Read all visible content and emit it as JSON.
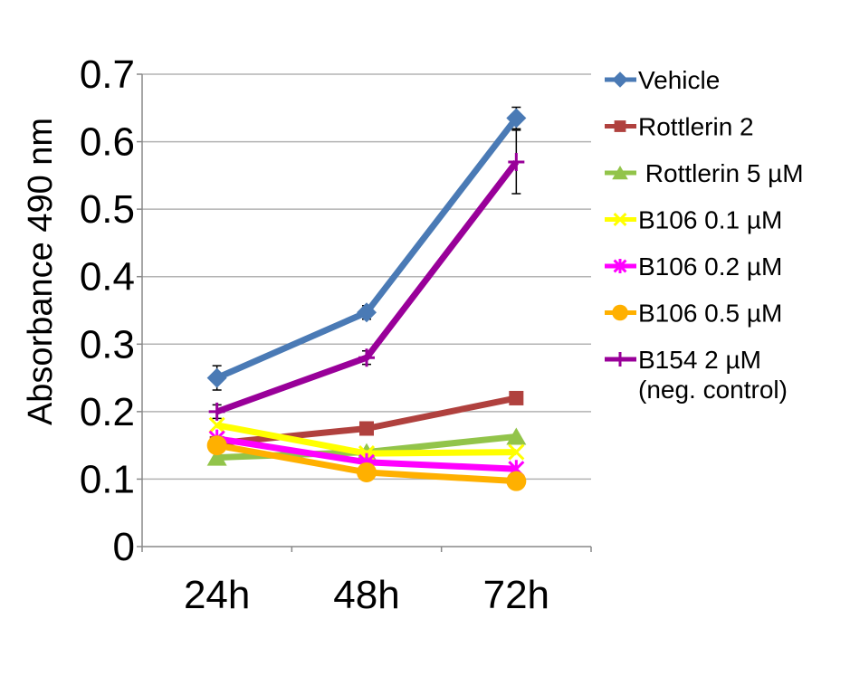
{
  "chart_data": {
    "type": "line",
    "ylabel": "Absorbance 490 nm",
    "xlabel": "",
    "ylim": [
      0,
      0.7
    ],
    "yticks": [
      "0",
      "0.1",
      "0.2",
      "0.3",
      "0.4",
      "0.5",
      "0.6",
      "0.7"
    ],
    "categories": [
      "24h",
      "48h",
      "72h"
    ],
    "grid": "horizontal",
    "legend_position": "right",
    "series": [
      {
        "name": "Vehicle",
        "values": [
          0.25,
          0.347,
          0.635
        ],
        "errors": [
          0.018,
          0.01,
          0.016
        ],
        "color": "#4a7ab5",
        "marker": "diamond"
      },
      {
        "name": "Rottlerin 2",
        "values": [
          0.153,
          0.175,
          0.22
        ],
        "errors": [
          0,
          0,
          0
        ],
        "color": "#b0413e",
        "marker": "square"
      },
      {
        "name": " Rottlerin 5 µM",
        "values": [
          0.132,
          0.14,
          0.163
        ],
        "errors": [
          0,
          0,
          0
        ],
        "color": "#92c44a",
        "marker": "triangle"
      },
      {
        "name": "B106 0.1 µM",
        "values": [
          0.18,
          0.138,
          0.14
        ],
        "errors": [
          0,
          0,
          0
        ],
        "color": "#ffff00",
        "marker": "x"
      },
      {
        "name": "B106 0.2 µM",
        "values": [
          0.16,
          0.125,
          0.115
        ],
        "errors": [
          0,
          0,
          0
        ],
        "color": "#ff00ff",
        "marker": "star"
      },
      {
        "name": "B106 0.5 µM",
        "values": [
          0.15,
          0.11,
          0.097
        ],
        "errors": [
          0,
          0,
          0
        ],
        "color": "#ffb000",
        "marker": "circle"
      },
      {
        "name": "B154 2 µM\n(neg. control)",
        "values": [
          0.2,
          0.28,
          0.57
        ],
        "errors": [
          0.01,
          0.01,
          0.047
        ],
        "color": "#990099",
        "marker": "plus"
      }
    ]
  }
}
